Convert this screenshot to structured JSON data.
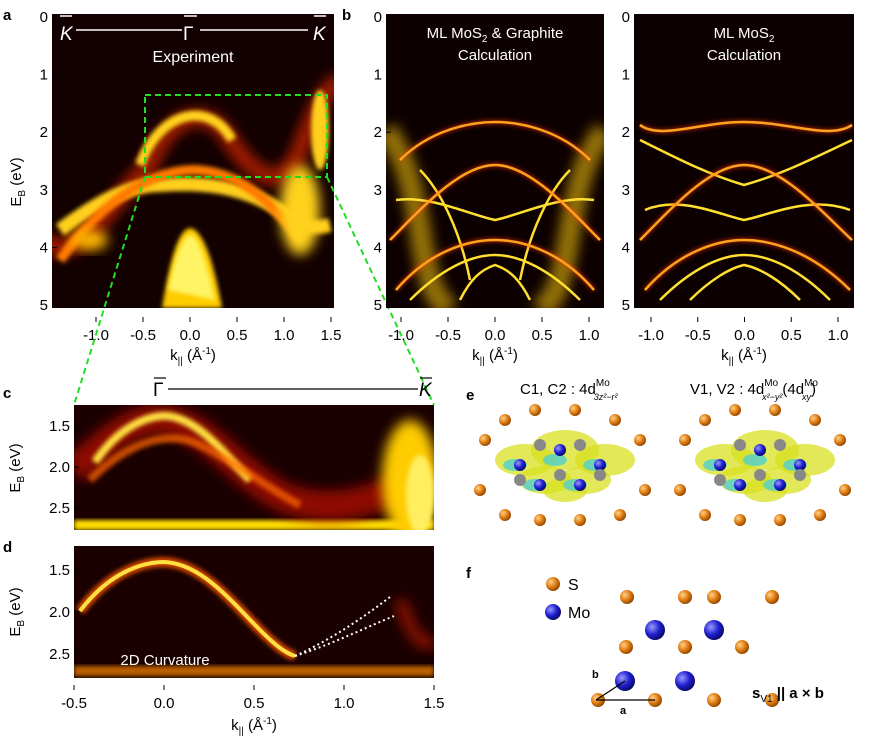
{
  "panels": {
    "a": {
      "letter": "a",
      "title": "Experiment",
      "kbar_left": "K",
      "gamma": "Γ",
      "kbar_right": "K",
      "ylabel_main": "E",
      "ylabel_sub": "B",
      "ylabel_unit": " (eV)",
      "yticks": [
        "0",
        "1",
        "2",
        "3",
        "4",
        "5"
      ],
      "xticks": [
        "-1.0",
        "-0.5",
        "0.0",
        "0.5",
        "1.0",
        "1.5"
      ],
      "xlabel_main": "k",
      "xlabel_sub": "||",
      "xlabel_unit": " (Å",
      "xlabel_sup": "-1",
      "xlabel_close": ")"
    },
    "b": {
      "letter": "b",
      "left_title_1": "ML MoS",
      "left_title_sub": "2",
      "left_title_2": " & Graphite",
      "left_title_line2": "Calculation",
      "right_title_1": "ML MoS",
      "right_title_sub": "2",
      "right_title_line2": "Calculation",
      "yticks": [
        "0",
        "1",
        "2",
        "3",
        "4",
        "5"
      ],
      "xticks": [
        "-1.0",
        "-0.5",
        "0.0",
        "0.5",
        "1.0"
      ]
    },
    "c": {
      "letter": "c",
      "gamma": "Γ",
      "kbar": "K",
      "yticks": [
        "1.5",
        "2.0",
        "2.5"
      ]
    },
    "d": {
      "letter": "d",
      "annotation": "2D Curvature",
      "yticks": [
        "1.5",
        "2.0",
        "2.5"
      ],
      "xticks": [
        "-0.5",
        "0.0",
        "0.5",
        "1.0",
        "1.5"
      ]
    },
    "e": {
      "letter": "e",
      "left_label": "C1, C2 : 4d",
      "left_sup": "Mo",
      "left_sub": "3z²−r²",
      "right_label": "V1, V2 : 4d",
      "right_sup": "Mo",
      "right_sub": "x²−y²",
      "right_paren": "(4d",
      "right_paren_sup": "Mo",
      "right_paren_sub": "xy",
      "right_close": ")"
    },
    "f": {
      "letter": "f",
      "legend_s": "S",
      "legend_mo": "Mo",
      "vec_a": "a",
      "vec_b": "b",
      "s_label": "s",
      "s_sub": "V1",
      "s_rest": " || a × b"
    }
  },
  "colors": {
    "sulfur": "#e07b10",
    "molybdenum": "#1f1fd0",
    "guide": "#22dd22",
    "band": "#ffdd22"
  }
}
